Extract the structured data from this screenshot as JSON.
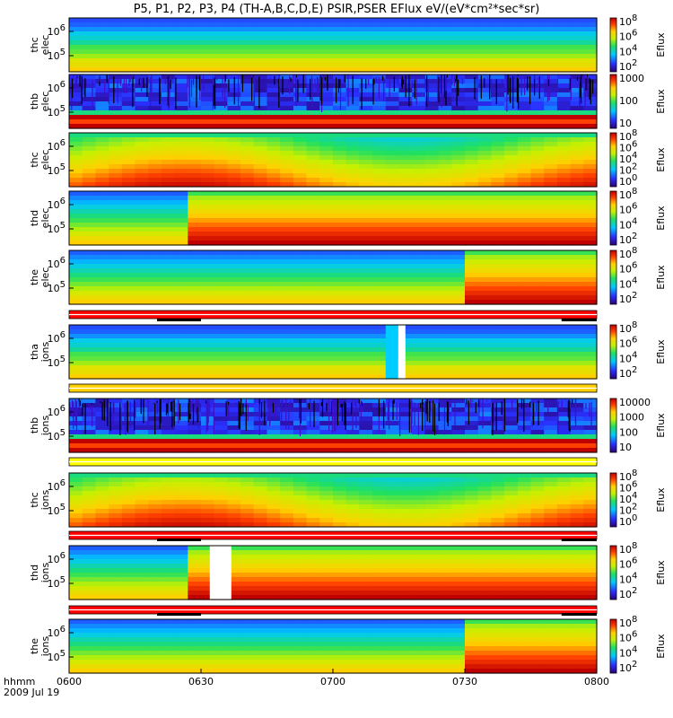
{
  "title": "P5, P1, P2, P3, P4 (TH-A,B,C,D,E) PSIR,PSER EFlux eV/(eV*cm²*sec*sr)",
  "chart_data": [
    {
      "type": "heatmap",
      "probe": "thc",
      "species": "elec",
      "ylabel": [
        "thc",
        "elec"
      ],
      "yticks": [
        {
          "v": 1000000,
          "b": "10",
          "e": "6"
        },
        {
          "v": 100000,
          "b": "10",
          "e": "5"
        }
      ],
      "cb": {
        "label": "Eflux",
        "ticks": [
          {
            "b": "10",
            "e": "8"
          },
          {
            "b": "10",
            "e": "6"
          },
          {
            "b": "10",
            "e": "4"
          },
          {
            "b": "10",
            "e": "2"
          }
        ]
      },
      "pattern": "bands"
    },
    {
      "type": "heatmap",
      "probe": "thb",
      "species": "elec",
      "ylabel": [
        "thb",
        "elec"
      ],
      "yticks": [
        {
          "v": 1000000,
          "b": "10",
          "e": "6"
        },
        {
          "v": 100000,
          "b": "10",
          "e": "5"
        }
      ],
      "cb": {
        "label": "Eflux",
        "ticks": [
          {
            "b": "1000",
            "e": ""
          },
          {
            "b": "100",
            "e": ""
          },
          {
            "b": "10",
            "e": ""
          }
        ]
      },
      "pattern": "noise"
    },
    {
      "type": "heatmap",
      "probe": "thc",
      "species": "elec",
      "ylabel": [
        "thc",
        "elec"
      ],
      "yticks": [
        {
          "v": 1000000,
          "b": "10",
          "e": "6"
        },
        {
          "v": 100000,
          "b": "10",
          "e": "5"
        }
      ],
      "cb": {
        "label": "Eflux",
        "ticks": [
          {
            "b": "10",
            "e": "8"
          },
          {
            "b": "10",
            "e": "6"
          },
          {
            "b": "10",
            "e": "4"
          },
          {
            "b": "10",
            "e": "2"
          },
          {
            "b": "10",
            "e": "0"
          }
        ]
      },
      "pattern": "smooth"
    },
    {
      "type": "heatmap",
      "probe": "thd",
      "species": "elec",
      "ylabel": [
        "thd",
        "elec"
      ],
      "yticks": [
        {
          "v": 1000000,
          "b": "10",
          "e": "6"
        },
        {
          "v": 100000,
          "b": "10",
          "e": "5"
        }
      ],
      "cb": {
        "label": "Eflux",
        "ticks": [
          {
            "b": "10",
            "e": "8"
          },
          {
            "b": "10",
            "e": "6"
          },
          {
            "b": "10",
            "e": "4"
          },
          {
            "b": "10",
            "e": "2"
          }
        ]
      },
      "pattern": "step",
      "step_time": "0625"
    },
    {
      "type": "heatmap",
      "probe": "the",
      "species": "elec",
      "ylabel": [
        "the",
        "elec"
      ],
      "yticks": [
        {
          "v": 1000000,
          "b": "10",
          "e": "6"
        },
        {
          "v": 100000,
          "b": "10",
          "e": "5"
        }
      ],
      "cb": {
        "label": "Eflux",
        "ticks": [
          {
            "b": "10",
            "e": "8"
          },
          {
            "b": "10",
            "e": "6"
          },
          {
            "b": "10",
            "e": "4"
          },
          {
            "b": "10",
            "e": "2"
          }
        ]
      },
      "pattern": "step",
      "step_time": "0727"
    },
    {
      "type": "heatmap",
      "probe": "tha",
      "species": "ions",
      "ylabel": [
        "tha",
        "ions"
      ],
      "yticks": [
        {
          "v": 1000000,
          "b": "10",
          "e": "6"
        },
        {
          "v": 100000,
          "b": "10",
          "e": "5"
        }
      ],
      "cb": {
        "label": "Eflux",
        "ticks": [
          {
            "b": "10",
            "e": "8"
          },
          {
            "b": "10",
            "e": "6"
          },
          {
            "b": "10",
            "e": "4"
          },
          {
            "b": "10",
            "e": "2"
          }
        ]
      },
      "pattern": "bands_gap"
    },
    {
      "type": "heatmap",
      "probe": "thb",
      "species": "ions",
      "ylabel": [
        "thb",
        "ions"
      ],
      "yticks": [
        {
          "v": 1000000,
          "b": "10",
          "e": "6"
        },
        {
          "v": 100000,
          "b": "10",
          "e": "5"
        }
      ],
      "cb": {
        "label": "Eflux",
        "ticks": [
          {
            "b": "10000",
            "e": ""
          },
          {
            "b": "1000",
            "e": ""
          },
          {
            "b": "100",
            "e": ""
          },
          {
            "b": "10",
            "e": ""
          }
        ]
      },
      "pattern": "noise"
    },
    {
      "type": "heatmap",
      "probe": "thc",
      "species": "ions",
      "ylabel": [
        "thc",
        "ions"
      ],
      "yticks": [
        {
          "v": 1000000,
          "b": "10",
          "e": "6"
        },
        {
          "v": 100000,
          "b": "10",
          "e": "5"
        }
      ],
      "cb": {
        "label": "Eflux",
        "ticks": [
          {
            "b": "10",
            "e": "8"
          },
          {
            "b": "10",
            "e": "6"
          },
          {
            "b": "10",
            "e": "4"
          },
          {
            "b": "10",
            "e": "2"
          },
          {
            "b": "10",
            "e": "0"
          }
        ]
      },
      "pattern": "smooth"
    },
    {
      "type": "heatmap",
      "probe": "thd",
      "species": "ions",
      "ylabel": [
        "thd",
        "ions"
      ],
      "yticks": [
        {
          "v": 1000000,
          "b": "10",
          "e": "6"
        },
        {
          "v": 100000,
          "b": "10",
          "e": "5"
        }
      ],
      "cb": {
        "label": "Eflux",
        "ticks": [
          {
            "b": "10",
            "e": "8"
          },
          {
            "b": "10",
            "e": "6"
          },
          {
            "b": "10",
            "e": "4"
          },
          {
            "b": "10",
            "e": "2"
          }
        ]
      },
      "pattern": "step_gap",
      "step_time": "0625"
    },
    {
      "type": "heatmap",
      "probe": "the",
      "species": "ions",
      "ylabel": [
        "the",
        "ions"
      ],
      "yticks": [
        {
          "v": 1000000,
          "b": "10",
          "e": "6"
        },
        {
          "v": 100000,
          "b": "10",
          "e": "5"
        }
      ],
      "cb": {
        "label": "Eflux",
        "ticks": [
          {
            "b": "10",
            "e": "8"
          },
          {
            "b": "10",
            "e": "6"
          },
          {
            "b": "10",
            "e": "4"
          },
          {
            "b": "10",
            "e": "2"
          }
        ]
      },
      "pattern": "step",
      "step_time": "0727"
    }
  ],
  "x_axis": {
    "label": "hhmm",
    "date": "2009 Jul 19",
    "ticks": [
      "0600",
      "0630",
      "0700",
      "0730",
      "0800"
    ],
    "range": [
      "0600",
      "0800"
    ]
  }
}
